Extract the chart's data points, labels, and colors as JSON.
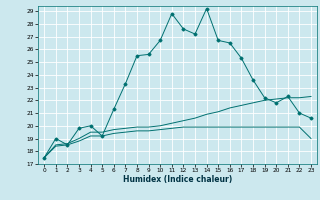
{
  "xlabel": "Humidex (Indice chaleur)",
  "bg_color": "#cce8ee",
  "grid_color": "#b0d8e0",
  "line_color": "#007070",
  "xlim": [
    -0.5,
    23.5
  ],
  "ylim": [
    17,
    29.4
  ],
  "yticks": [
    17,
    18,
    19,
    20,
    21,
    22,
    23,
    24,
    25,
    26,
    27,
    28,
    29
  ],
  "xticks": [
    0,
    1,
    2,
    3,
    4,
    5,
    6,
    7,
    8,
    9,
    10,
    11,
    12,
    13,
    14,
    15,
    16,
    17,
    18,
    19,
    20,
    21,
    22,
    23
  ],
  "series1_x": [
    0,
    1,
    2,
    3,
    4,
    5,
    6,
    7,
    8,
    9,
    10,
    11,
    12,
    13,
    14,
    15,
    16,
    17,
    18,
    19,
    20,
    21,
    22,
    23
  ],
  "series1_y": [
    17.5,
    19.0,
    18.5,
    19.8,
    20.0,
    19.2,
    21.3,
    23.3,
    25.5,
    25.6,
    26.7,
    28.8,
    27.6,
    27.2,
    29.2,
    26.7,
    26.5,
    25.3,
    23.6,
    22.2,
    21.8,
    22.3,
    21.0,
    20.6
  ],
  "series2_x": [
    0,
    1,
    2,
    3,
    4,
    5,
    6,
    7,
    8,
    9,
    10,
    11,
    12,
    13,
    14,
    15,
    16,
    17,
    18,
    19,
    20,
    21,
    22,
    23
  ],
  "series2_y": [
    17.5,
    18.5,
    18.6,
    19.0,
    19.5,
    19.5,
    19.7,
    19.8,
    19.9,
    19.9,
    20.0,
    20.2,
    20.4,
    20.6,
    20.9,
    21.1,
    21.4,
    21.6,
    21.8,
    22.0,
    22.1,
    22.2,
    22.2,
    22.3
  ],
  "series3_x": [
    0,
    1,
    2,
    3,
    4,
    5,
    6,
    7,
    8,
    9,
    10,
    11,
    12,
    13,
    14,
    15,
    16,
    17,
    18,
    19,
    20,
    21,
    22,
    23
  ],
  "series3_y": [
    17.5,
    18.4,
    18.5,
    18.8,
    19.2,
    19.2,
    19.4,
    19.5,
    19.6,
    19.6,
    19.7,
    19.8,
    19.9,
    19.9,
    19.9,
    19.9,
    19.9,
    19.9,
    19.9,
    19.9,
    19.9,
    19.9,
    19.9,
    19.0
  ]
}
